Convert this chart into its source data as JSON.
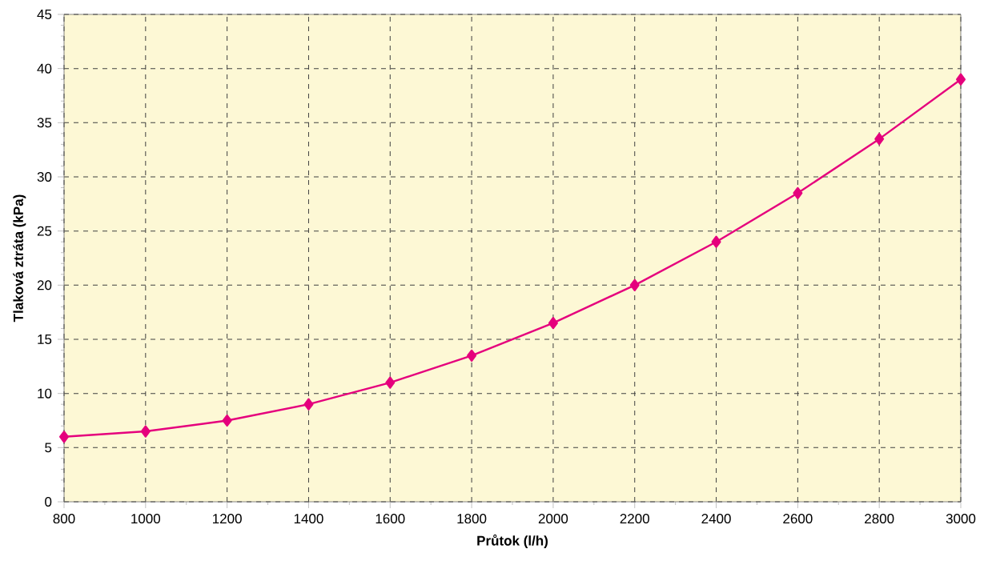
{
  "chart_data": {
    "type": "line",
    "xlabel": "Průtok (l/h)",
    "ylabel": "Tlaková ztráta (kPa)",
    "x": [
      800,
      1000,
      1200,
      1400,
      1600,
      1800,
      2000,
      2200,
      2400,
      2600,
      2800,
      3000
    ],
    "series": [
      {
        "color": "#e5007d",
        "values": [
          6,
          6.5,
          7.5,
          9,
          11,
          13.5,
          16.5,
          20,
          24,
          28.5,
          33.5,
          39
        ]
      }
    ],
    "xlim": [
      800,
      3000
    ],
    "ylim": [
      0,
      45
    ],
    "xticks": [
      800,
      1000,
      1200,
      1400,
      1600,
      1800,
      2000,
      2200,
      2400,
      2600,
      2800,
      3000
    ],
    "yticks": [
      0,
      5,
      10,
      15,
      20,
      25,
      30,
      35,
      40,
      45
    ],
    "grid": true,
    "marker": "diamond",
    "line_style": "solid"
  }
}
